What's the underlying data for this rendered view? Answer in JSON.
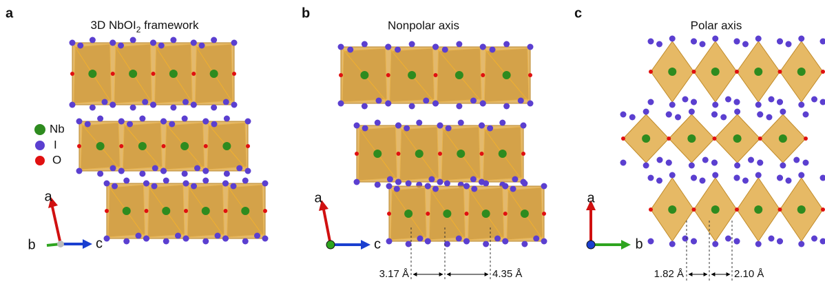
{
  "panels": [
    {
      "letter": "a",
      "title": {
        "text": "3D NbOI",
        "subscript": "2",
        "rest": " framework"
      },
      "legend": [
        {
          "label": "Nb"
        },
        {
          "label": "I"
        },
        {
          "label": "O"
        }
      ],
      "axes": [
        "a",
        "b",
        "c"
      ]
    },
    {
      "letter": "b",
      "title": "Nonpolar axis",
      "axes": [
        "a",
        "c"
      ],
      "distances": [
        "3.17 Å",
        "4.35 Å"
      ]
    },
    {
      "letter": "c",
      "title": "Polar axis",
      "axes": [
        "a",
        "b"
      ],
      "distances": [
        "1.82 Å",
        "2.10 Å"
      ]
    }
  ]
}
